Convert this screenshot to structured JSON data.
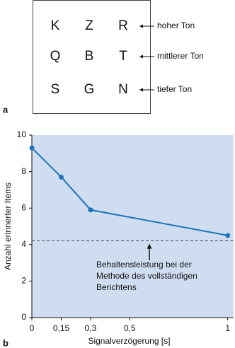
{
  "panel_a": {
    "label": "a",
    "rows": [
      [
        "K",
        "Z",
        "R"
      ],
      [
        "Q",
        "B",
        "T"
      ],
      [
        "S",
        "G",
        "N"
      ]
    ],
    "row_labels": [
      "hoher Ton",
      "mittlerer Ton",
      "tiefer Ton"
    ]
  },
  "chart_data": {
    "type": "line",
    "panel_label": "b",
    "x_label": "Signalverzögerung [s]",
    "y_label": "Anzahl erinnerter Items",
    "x": [
      0,
      0.15,
      0.3,
      1
    ],
    "values": [
      9.3,
      7.7,
      5.9,
      4.5
    ],
    "color": "#1a75bb",
    "xlim": [
      0,
      1.03
    ],
    "ylim": [
      0,
      10
    ],
    "xticks": [
      0,
      {
        "value": 0.15,
        "label": "0,15"
      },
      {
        "value": 0.3,
        "label": "0,3"
      },
      {
        "value": 0.5,
        "label": "0,5"
      },
      1
    ],
    "yticks": [
      0,
      2,
      4,
      6,
      8,
      10
    ],
    "reference_line": 4.2,
    "annotation_x": 0.6,
    "annotation_lines": [
      "Behaltensleistung bei der",
      "Methode des vollständigen",
      "Berichtens"
    ],
    "background": "#d0ddf1"
  }
}
